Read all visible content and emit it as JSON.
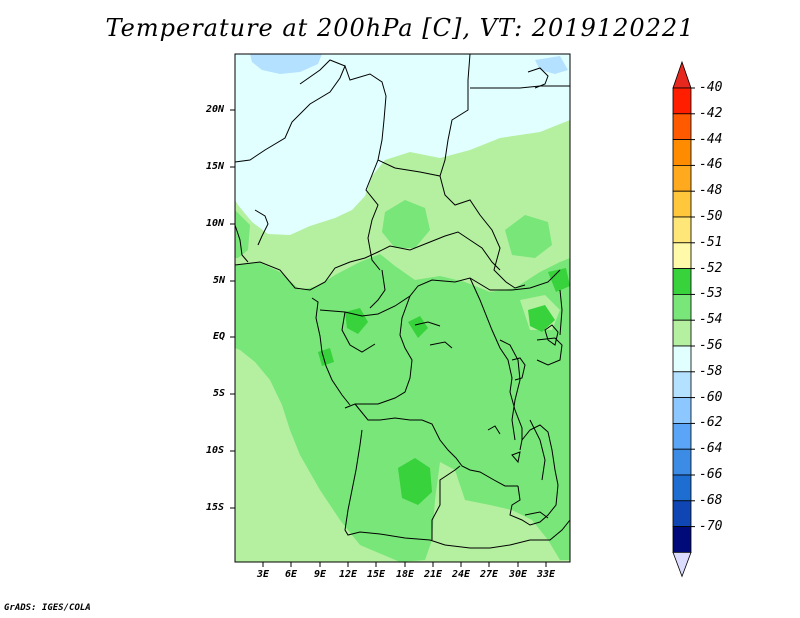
{
  "title": "Temperature at 200hPa [C], VT: 2019120221",
  "credit": "GrADS: IGES/COLA",
  "lat_labels": [
    "20N",
    "15N",
    "10N",
    "5N",
    "EQ",
    "5S",
    "10S",
    "15S"
  ],
  "lon_labels": [
    "3E",
    "6E",
    "9E",
    "12E",
    "15E",
    "18E",
    "21E",
    "24E",
    "27E",
    "30E",
    "33E"
  ],
  "colorbar": {
    "labels": [
      "-40",
      "-42",
      "-44",
      "-46",
      "-48",
      "-50",
      "-51",
      "-52",
      "-53",
      "-54",
      "-56",
      "-58",
      "-60",
      "-62",
      "-64",
      "-66",
      "-68",
      "-70"
    ],
    "colors": [
      "#ff1e00",
      "#ff5a00",
      "#ff8c00",
      "#ffaa1e",
      "#ffc83c",
      "#ffe678",
      "#fffaaa",
      "#37d23c",
      "#78e678",
      "#b4f0a0",
      "#e1ffff",
      "#b4e1ff",
      "#8cc8ff",
      "#5aa5f5",
      "#3c8ce6",
      "#1e6ed2",
      "#0f46b4",
      "#000a78"
    ],
    "over_color": "#e6281e",
    "under_color": "#dcdcff"
  },
  "map_colors": {
    "cold": "#e1ffff",
    "cool": "#b4f0a0",
    "mid": "#78e678",
    "warm": "#37d23c",
    "blue": "#b4e1ff",
    "border": "#000000"
  }
}
